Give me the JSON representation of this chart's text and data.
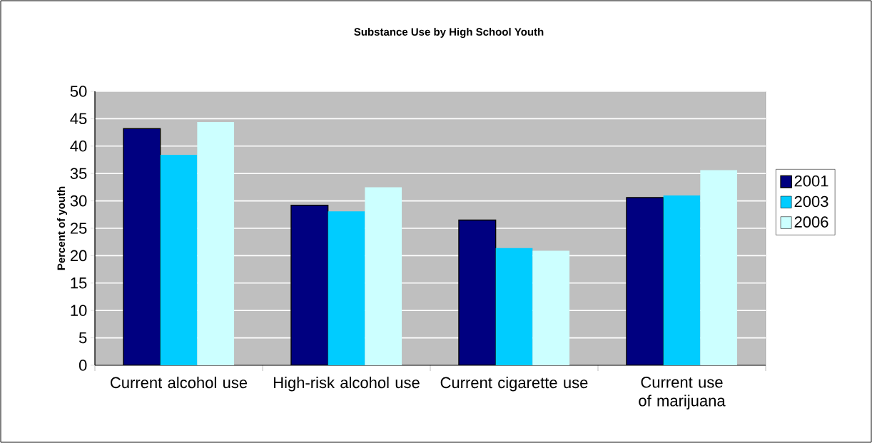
{
  "chart_data": {
    "type": "bar",
    "title": "Substance Use by High School Youth",
    "ylabel": "Percent of youth",
    "categories": [
      "Current alcohol use",
      "High-risk alcohol use",
      "Current cigarette use",
      "Current use of marijuana"
    ],
    "series": [
      {
        "name": "2001",
        "color": "#000080",
        "values": [
          43.2,
          29.2,
          26.5,
          30.6
        ]
      },
      {
        "name": "2003",
        "color": "#00ccff",
        "values": [
          38.4,
          28.1,
          21.4,
          31.0
        ]
      },
      {
        "name": "2006",
        "color": "#ccffff",
        "values": [
          44.4,
          32.5,
          20.9,
          35.6
        ]
      }
    ],
    "ylim": [
      0,
      50
    ],
    "yticks": [
      0,
      5,
      10,
      15,
      20,
      25,
      30,
      35,
      40,
      45,
      50
    ],
    "grid": "y",
    "legend": "right"
  }
}
